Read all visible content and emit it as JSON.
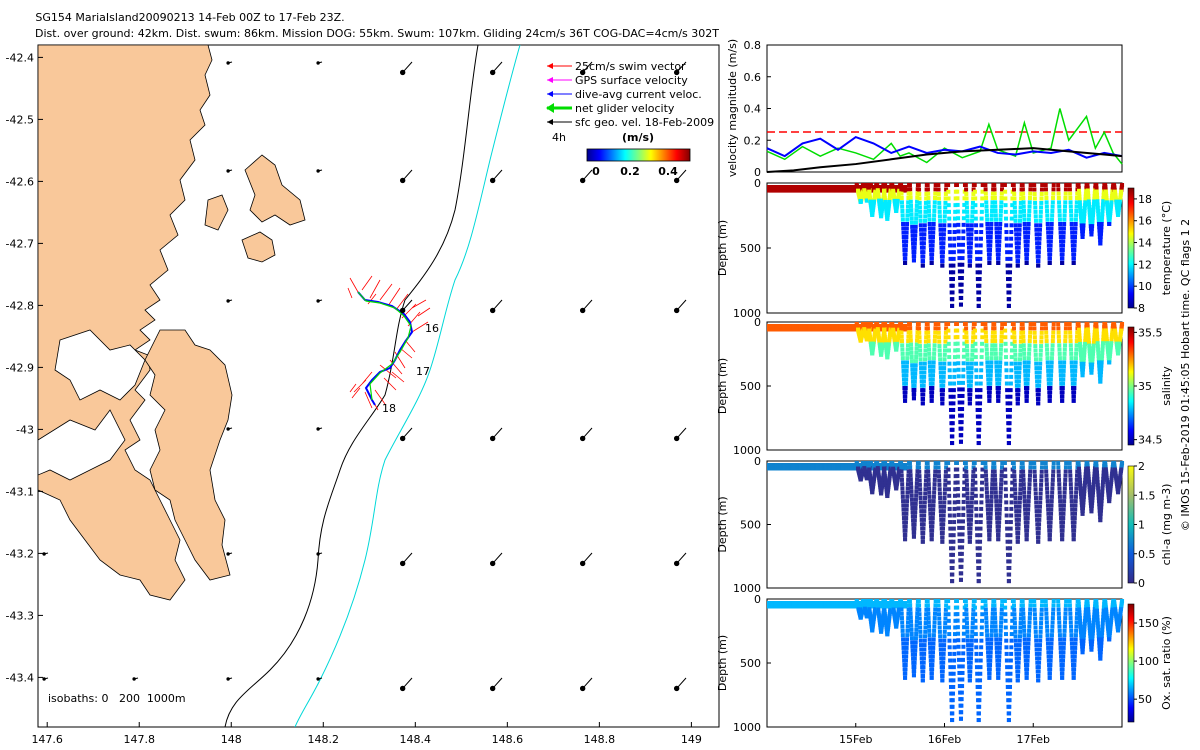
{
  "title_line1": "SG154 MariaIsland20090213 14-Feb 00Z to 17-Feb 23Z.",
  "title_line2": "Dist. over ground: 42km. Dist. swum: 86km. Mission DOG: 55km. Swum: 107km. Gliding 24cm/s 36T COG-DAC=4cm/s 302T",
  "footer_note": "© IMOS 15-Feb-2019 01:45:05 Hobart time. QC flags 1  2",
  "colors": {
    "land": "#F9C89A",
    "isobath200": "#000000",
    "isobath1000": "#00D8D8",
    "swim_vector": "#FF0000",
    "gps_velocity": "#FF00FF",
    "dive_avg_current": "#0000FF",
    "net_glider": "#00DD00",
    "sfc_geo": "#000000",
    "red_dashed": "#FF0000"
  },
  "chart_data": [
    {
      "type": "map",
      "xticks": [
        "147.6",
        "147.8",
        "148",
        "148.2",
        "148.4",
        "148.6",
        "148.8",
        "149"
      ],
      "yticks": [
        "-42.4",
        "-42.5",
        "-42.6",
        "-42.7",
        "-42.8",
        "-42.9",
        "-43",
        "-43.1",
        "-43.2",
        "-43.3",
        "-43.4"
      ],
      "xlim": [
        147.58,
        149.06
      ],
      "ylim": [
        -43.48,
        -42.38
      ],
      "legend": {
        "entries": [
          {
            "label": "25cm/s swim vector",
            "color": "#FF0000"
          },
          {
            "label": "GPS surface velocity",
            "color": "#FF00FF"
          },
          {
            "label": "dive-avg current veloc.",
            "color": "#0000FF"
          },
          {
            "label": "net glider velocity",
            "color": "#00DD00"
          },
          {
            "label": "sfc geo. vel. 18-Feb-2009",
            "color": "#000000"
          }
        ],
        "interval_label": "4h",
        "colorbar_title": "(m/s)",
        "colorbar_ticks": [
          "0",
          "0.2",
          "0.4"
        ]
      },
      "day_labels": [
        "16",
        "17",
        "18"
      ],
      "isobaths_label": "isobaths: 0   200  1000m"
    },
    {
      "type": "line",
      "ylabel": "velocity magnitude (m/s)",
      "yticks": [
        "0",
        "0.2",
        "0.4",
        "0.6",
        "0.8"
      ],
      "ylim": [
        0,
        0.8
      ],
      "reference_line": 0.25,
      "series": [
        {
          "color": "#00DD00",
          "x": [
            14.0,
            14.2,
            14.4,
            14.6,
            14.8,
            15.0,
            15.2,
            15.4,
            15.5,
            15.6,
            15.8,
            16.0,
            16.2,
            16.4,
            16.5,
            16.6,
            16.8,
            16.9,
            17.0,
            17.2,
            17.3,
            17.4,
            17.6,
            17.7,
            17.8,
            17.9,
            18.0
          ],
          "y": [
            0.13,
            0.08,
            0.16,
            0.1,
            0.15,
            0.12,
            0.08,
            0.18,
            0.1,
            0.12,
            0.06,
            0.15,
            0.09,
            0.13,
            0.3,
            0.14,
            0.1,
            0.31,
            0.12,
            0.15,
            0.4,
            0.2,
            0.35,
            0.15,
            0.25,
            0.12,
            0.05
          ]
        },
        {
          "color": "#0000FF",
          "x": [
            14.0,
            14.2,
            14.4,
            14.6,
            14.8,
            15.0,
            15.2,
            15.4,
            15.6,
            15.8,
            16.0,
            16.2,
            16.4,
            16.6,
            16.8,
            17.0,
            17.2,
            17.4,
            17.6,
            17.8,
            18.0
          ],
          "y": [
            0.15,
            0.1,
            0.18,
            0.21,
            0.14,
            0.22,
            0.18,
            0.12,
            0.16,
            0.12,
            0.14,
            0.13,
            0.16,
            0.12,
            0.11,
            0.13,
            0.12,
            0.14,
            0.09,
            0.12,
            0.1
          ]
        },
        {
          "color": "#000000",
          "x": [
            14.0,
            14.3,
            14.6,
            15.0,
            15.4,
            15.8,
            16.2,
            16.6,
            17.0,
            17.4,
            17.8,
            18.0
          ],
          "y": [
            0.0,
            0.01,
            0.03,
            0.05,
            0.08,
            0.11,
            0.13,
            0.14,
            0.15,
            0.13,
            0.11,
            0.1
          ]
        }
      ]
    },
    {
      "type": "heatmap",
      "variable": "temperature",
      "ylabel": "Depth (m)",
      "yticks": [
        "0",
        "500",
        "1000"
      ],
      "cbar_label": "temperature (°C)",
      "cbar_ticks": [
        "8",
        "10",
        "12",
        "14",
        "16",
        "18"
      ],
      "cbar_range": [
        8,
        19
      ]
    },
    {
      "type": "heatmap",
      "variable": "salinity",
      "ylabel": "Depth (m)",
      "yticks": [
        "0",
        "500",
        "1000"
      ],
      "cbar_label": "salinity",
      "cbar_ticks": [
        "34.5",
        "35",
        "35.5"
      ],
      "cbar_range": [
        34.45,
        35.55
      ]
    },
    {
      "type": "heatmap",
      "variable": "chl-a",
      "ylabel": "Depth (m)",
      "yticks": [
        "0",
        "500",
        "1000"
      ],
      "cbar_label": "chl-a (mg m-3)",
      "cbar_ticks": [
        "0",
        "0.5",
        "1",
        "1.5",
        "2"
      ],
      "cbar_range": [
        0,
        2
      ]
    },
    {
      "type": "heatmap",
      "variable": "oxygen",
      "ylabel": "Depth (m)",
      "yticks": [
        "0",
        "500",
        "1000"
      ],
      "cbar_label": "Ox. sat. ratio (%)",
      "cbar_ticks": [
        "50",
        "100",
        "150"
      ],
      "cbar_range": [
        20,
        175
      ],
      "xticks": [
        "15Feb",
        "16Feb",
        "17Feb"
      ],
      "dives": [
        {
          "t": 15.05,
          "depth": 130
        },
        {
          "t": 15.12,
          "depth": 120
        },
        {
          "t": 15.18,
          "depth": 230
        },
        {
          "t": 15.28,
          "depth": 240
        },
        {
          "t": 15.35,
          "depth": 260
        },
        {
          "t": 15.45,
          "depth": 200
        },
        {
          "t": 15.55,
          "depth": 600
        },
        {
          "t": 15.65,
          "depth": 580
        },
        {
          "t": 15.75,
          "depth": 620
        },
        {
          "t": 15.85,
          "depth": 600
        },
        {
          "t": 15.97,
          "depth": 620
        },
        {
          "t": 16.08,
          "depth": 930
        },
        {
          "t": 16.18,
          "depth": 920
        },
        {
          "t": 16.28,
          "depth": 620
        },
        {
          "t": 16.38,
          "depth": 930
        },
        {
          "t": 16.5,
          "depth": 600
        },
        {
          "t": 16.6,
          "depth": 600
        },
        {
          "t": 16.72,
          "depth": 930
        },
        {
          "t": 16.82,
          "depth": 620
        },
        {
          "t": 16.92,
          "depth": 600
        },
        {
          "t": 17.05,
          "depth": 620
        },
        {
          "t": 17.18,
          "depth": 600
        },
        {
          "t": 17.32,
          "depth": 600
        },
        {
          "t": 17.45,
          "depth": 600
        },
        {
          "t": 17.55,
          "depth": 400
        },
        {
          "t": 17.65,
          "depth": 380
        },
        {
          "t": 17.75,
          "depth": 450
        },
        {
          "t": 17.85,
          "depth": 300
        },
        {
          "t": 17.95,
          "depth": 230
        }
      ]
    }
  ]
}
